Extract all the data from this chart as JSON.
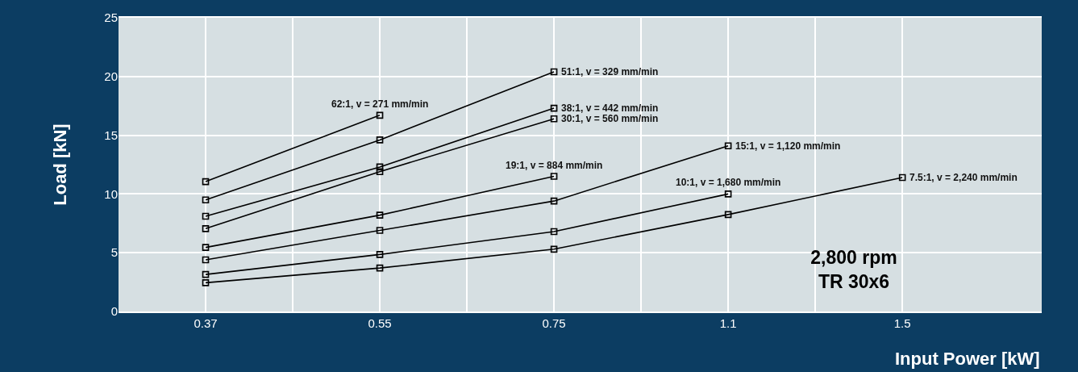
{
  "chart_data": {
    "type": "line",
    "xlabel": "Input Power [kW]",
    "ylabel": "Load [kN]",
    "categories": [
      "0.37",
      "0.55",
      "0.75",
      "1.1",
      "1.5"
    ],
    "series": [
      {
        "name": "62:1, v = 271 mm/min",
        "color": "#000000",
        "values": [
          11.05,
          16.7,
          null,
          null,
          null
        ]
      },
      {
        "name": "51:1, v = 329 mm/min",
        "color": "#000000",
        "values": [
          9.5,
          14.6,
          20.4,
          null,
          null
        ]
      },
      {
        "name": "38:1, v = 442 mm/min",
        "color": "#000000",
        "values": [
          8.1,
          12.3,
          17.3,
          null,
          null
        ]
      },
      {
        "name": "30:1, v = 560 mm/min",
        "color": "#000000",
        "values": [
          7.05,
          11.9,
          16.4,
          null,
          null
        ]
      },
      {
        "name": "19:1, v = 884 mm/min",
        "color": "#000000",
        "values": [
          5.45,
          8.2,
          11.5,
          null,
          null
        ]
      },
      {
        "name": "15:1, v = 1,120 mm/min",
        "color": "#000000",
        "values": [
          4.4,
          6.9,
          9.4,
          14.1,
          null
        ]
      },
      {
        "name": "10:1, v = 1,680 mm/min",
        "color": "#000000",
        "values": [
          3.15,
          4.85,
          6.8,
          10.0,
          null
        ]
      },
      {
        "name": "7.5:1, v = 2,240 mm/min",
        "color": "#000000",
        "values": [
          2.45,
          3.7,
          5.3,
          8.25,
          11.4
        ]
      }
    ],
    "ylim": [
      0,
      25
    ],
    "yticks": [
      0,
      5,
      10,
      15,
      20,
      25
    ],
    "grid": true,
    "legend": false,
    "marker": "square",
    "line_style": "solid",
    "annotations": [
      "2,800 rpm",
      "TR 30x6"
    ]
  }
}
